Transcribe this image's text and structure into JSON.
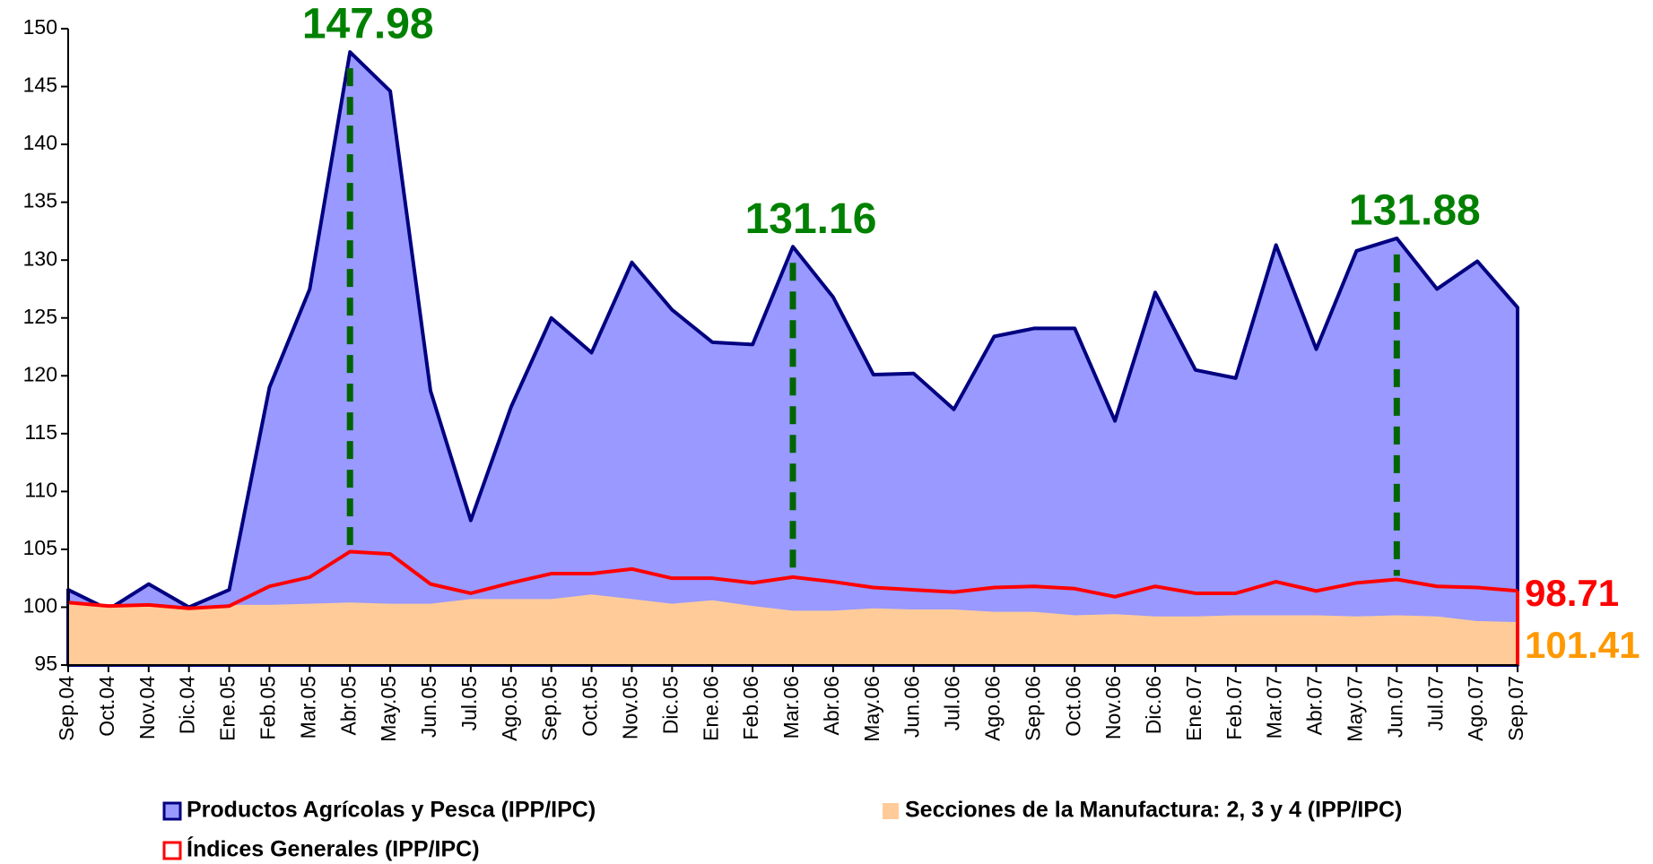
{
  "chart_data": {
    "type": "area",
    "categories": [
      "Sep.04",
      "Oct.04",
      "Nov.04",
      "Dic.04",
      "Ene.05",
      "Feb.05",
      "Mar.05",
      "Abr.05",
      "May.05",
      "Jun.05",
      "Jul.05",
      "Ago.05",
      "Sep.05",
      "Oct.05",
      "Nov.05",
      "Dic.05",
      "Ene.06",
      "Feb.06",
      "Mar.06",
      "Abr.06",
      "May.06",
      "Jun.06",
      "Jul.06",
      "Ago.06",
      "Sep.06",
      "Oct.06",
      "Nov.06",
      "Dic.06",
      "Ene.07",
      "Feb.07",
      "Mar.07",
      "Abr.07",
      "May.07",
      "Jun.07",
      "Jul.07",
      "Ago.07",
      "Sep.07"
    ],
    "series": [
      {
        "name": "Productos Agrícolas y Pesca (IPP/IPC)",
        "color": "#9999ff",
        "line_color": "#000080",
        "values": [
          101.5,
          99.8,
          102,
          100,
          101.5,
          119,
          127.5,
          147.98,
          144.6,
          118.7,
          107.5,
          117.3,
          125,
          122,
          129.8,
          125.7,
          122.9,
          122.7,
          131.16,
          126.8,
          120.1,
          120.2,
          117.1,
          123.4,
          124.1,
          124.1,
          116.1,
          127.2,
          120.5,
          119.8,
          131.3,
          122.3,
          130.8,
          131.88,
          127.5,
          129.9,
          125.9
        ]
      },
      {
        "name": "Secciones de la Manufactura: 2, 3 y 4 (IPP/IPC)",
        "color": "#ffcc99",
        "end_label_color": "#ff0000",
        "values": [
          100.3,
          100.1,
          100.2,
          100,
          100.2,
          100.2,
          100.3,
          100.4,
          100.3,
          100.3,
          100.7,
          100.7,
          100.7,
          101.1,
          100.7,
          100.3,
          100.6,
          100.1,
          99.7,
          99.7,
          99.9,
          99.8,
          99.8,
          99.6,
          99.6,
          99.3,
          99.4,
          99.2,
          99.2,
          99.3,
          99.3,
          99.3,
          99.2,
          99.3,
          99.2,
          98.8,
          98.71
        ]
      },
      {
        "name": "Índices Generales (IPP/IPC)",
        "color": "#ff0000",
        "end_label_color": "#ff9900",
        "values": [
          100.4,
          100.1,
          100.2,
          99.9,
          100.1,
          101.8,
          102.6,
          104.8,
          104.6,
          102,
          101.2,
          102.1,
          102.9,
          102.9,
          103.3,
          102.5,
          102.5,
          102.1,
          102.6,
          102.2,
          101.7,
          101.5,
          101.3,
          101.7,
          101.8,
          101.6,
          100.9,
          101.8,
          101.2,
          101.2,
          102.2,
          101.4,
          102.1,
          102.4,
          101.8,
          101.7,
          101.41
        ]
      }
    ],
    "highlight": [
      7,
      18,
      33
    ],
    "highlight_color": "#008000",
    "ylim": [
      95,
      150
    ],
    "yticks": [
      95,
      100,
      105,
      110,
      115,
      120,
      125,
      130,
      135,
      140,
      145,
      150
    ]
  }
}
